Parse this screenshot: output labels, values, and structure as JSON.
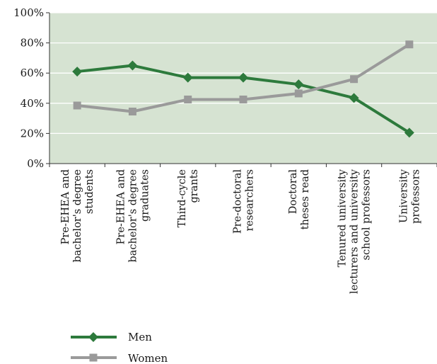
{
  "chart_data": {
    "type": "line",
    "title": "",
    "xlabel": "",
    "ylabel": "",
    "ylim": [
      0,
      100
    ],
    "yticks": [
      "0%",
      "20%",
      "40%",
      "60%",
      "80%",
      "100%"
    ],
    "grid": true,
    "legend_position": "bottom-left",
    "plot_background": "#d6e3d2",
    "categories": [
      [
        "Pre-EHEA and",
        "bachelor's degree",
        "students"
      ],
      [
        "Pre-EHEA and",
        "bachelor's degree",
        "graduates"
      ],
      [
        "Third-cycle",
        "grants"
      ],
      [
        "Pre-doctoral",
        "researchers"
      ],
      [
        "Doctoral",
        "theses read"
      ],
      [
        "Tenured university",
        "lecturers and university",
        "school professors"
      ],
      [
        "University",
        "professors"
      ]
    ],
    "series": [
      {
        "name": "Men",
        "color": "#2d7a3c",
        "marker": "diamond",
        "values": [
          61,
          65,
          57,
          57,
          52.5,
          43.5,
          20.5
        ]
      },
      {
        "name": "Women",
        "color": "#9a9a9a",
        "marker": "square",
        "values": [
          38.5,
          34.5,
          42.5,
          42.5,
          46.5,
          56,
          79
        ]
      }
    ]
  }
}
